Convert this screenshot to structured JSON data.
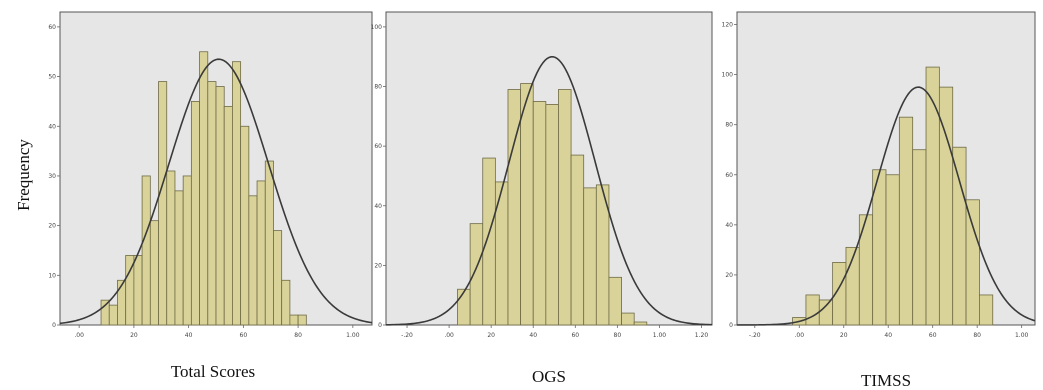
{
  "ylabel": "Frequency",
  "chart_data": [
    {
      "type": "bar",
      "xlabel": "Total Scores",
      "xticks": [
        ".00",
        "20",
        "40",
        "60",
        "80",
        "1.00"
      ],
      "yticks": [
        "0",
        "10",
        "20",
        "30",
        "40",
        "50",
        "60"
      ],
      "xlim": [
        -0.07,
        1.07
      ],
      "ylim": [
        0,
        63
      ],
      "bin_start": 0.08,
      "bin_width": 0.03,
      "values": [
        5,
        4,
        9,
        14,
        14,
        30,
        21,
        49,
        31,
        27,
        30,
        45,
        55,
        49,
        48,
        44,
        53,
        40,
        26,
        29,
        33,
        19,
        9,
        2,
        2
      ],
      "curve": {
        "mean": 0.51,
        "sd": 0.182,
        "peak": 53.5
      }
    },
    {
      "type": "bar",
      "xlabel": "OGS",
      "xticks": [
        "-.20",
        ".00",
        "20",
        "40",
        "60",
        "80",
        "1.00",
        "1.20"
      ],
      "yticks": [
        "0",
        "20",
        "40",
        "60",
        "80",
        "100"
      ],
      "xlim": [
        -0.3,
        1.25
      ],
      "ylim": [
        0,
        105
      ],
      "bin_start": 0.04,
      "bin_width": 0.06,
      "values": [
        12,
        34,
        56,
        48,
        79,
        81,
        75,
        74,
        79,
        57,
        46,
        47,
        16,
        4,
        1
      ],
      "curve": {
        "mean": 0.49,
        "sd": 0.205,
        "peak": 90
      }
    },
    {
      "type": "bar",
      "xlabel": "TIMSS",
      "xticks": [
        "-.20",
        ".00",
        "20",
        "40",
        "60",
        "80",
        "1.00"
      ],
      "yticks": [
        "0",
        "20",
        "40",
        "60",
        "80",
        "100",
        "120"
      ],
      "xlim": [
        -0.28,
        1.06
      ],
      "ylim": [
        0,
        125
      ],
      "bin_start": -0.03,
      "bin_width": 0.06,
      "values": [
        3,
        12,
        10,
        25,
        31,
        44,
        62,
        60,
        83,
        70,
        103,
        95,
        71,
        50,
        12
      ],
      "curve": {
        "mean": 0.535,
        "sd": 0.185,
        "peak": 95
      }
    }
  ]
}
